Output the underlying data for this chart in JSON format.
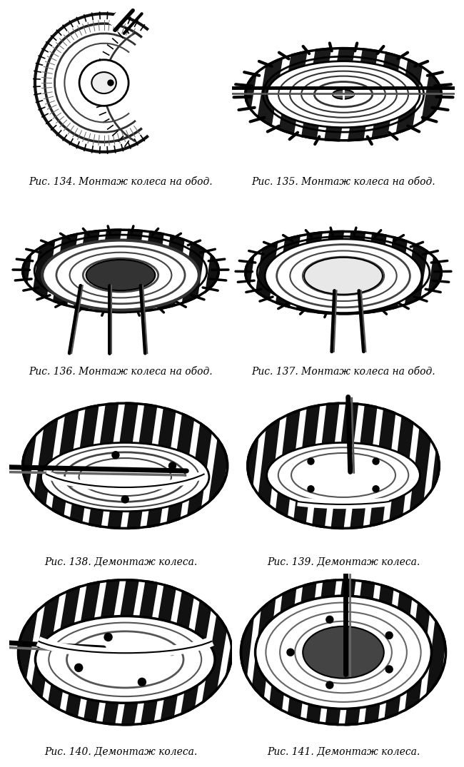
{
  "background_color": "#ffffff",
  "page_width": 6.5,
  "page_height": 10.75,
  "dpi": 100,
  "figures": [
    {
      "id": 134,
      "caption": "Рис. 134. Монтаж колеса на обод.",
      "col": 0,
      "row": 0
    },
    {
      "id": 135,
      "caption": "Рис. 135. Монтаж колеса на обод.",
      "col": 1,
      "row": 0
    },
    {
      "id": 136,
      "caption": "Рис. 136. Монтаж колеса на обод.",
      "col": 0,
      "row": 1
    },
    {
      "id": 137,
      "caption": "Рис. 137. Монтаж колеса на обод.",
      "col": 1,
      "row": 1
    },
    {
      "id": 138,
      "caption": "Рис. 138. Демонтаж колеса.",
      "col": 0,
      "row": 2
    },
    {
      "id": 139,
      "caption": "Рис. 139. Демонтаж колеса.",
      "col": 1,
      "row": 2
    },
    {
      "id": 140,
      "caption": "Рис. 140. Демонтаж колеса.",
      "col": 0,
      "row": 3
    },
    {
      "id": 141,
      "caption": "Рис. 141. Демонтаж колеса.",
      "col": 1,
      "row": 3
    }
  ],
  "caption_fontsize": 10,
  "caption_color": "#000000"
}
